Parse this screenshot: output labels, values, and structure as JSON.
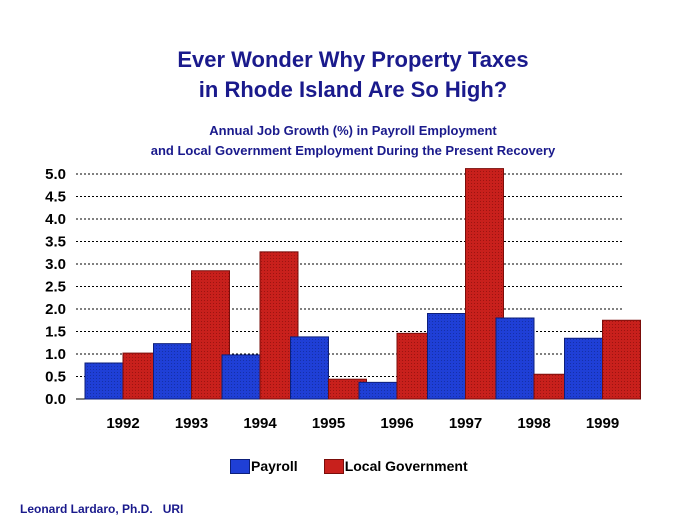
{
  "header": {
    "title_line1": "Ever Wonder Why Property Taxes",
    "title_line2": "in Rhode Island Are So High?",
    "subtitle_line1": "Annual Job Growth (%) in Payroll Employment",
    "subtitle_line2": "and Local Government Employment During the Present Recovery"
  },
  "footer": {
    "credit": "Leonard Lardaro, Ph.D.   URI"
  },
  "chart_data": {
    "type": "bar",
    "categories": [
      "1992",
      "1993",
      "1994",
      "1995",
      "1996",
      "1997",
      "1998",
      "1999"
    ],
    "series": [
      {
        "name": "Payroll",
        "color": "#1f3fd6",
        "values": [
          0.8,
          1.23,
          0.98,
          1.38,
          0.37,
          1.9,
          1.8,
          1.35
        ]
      },
      {
        "name": "Local Government",
        "color": "#c8201c",
        "values": [
          1.02,
          2.85,
          3.27,
          0.44,
          1.46,
          5.12,
          0.55,
          1.75
        ]
      }
    ],
    "yticks": [
      "0.0",
      "0.5",
      "1.0",
      "1.5",
      "2.0",
      "2.5",
      "3.0",
      "3.5",
      "4.0",
      "4.5",
      "5.0"
    ],
    "ylim": [
      0,
      5.0
    ],
    "grid": true,
    "legend_position": "bottom"
  }
}
